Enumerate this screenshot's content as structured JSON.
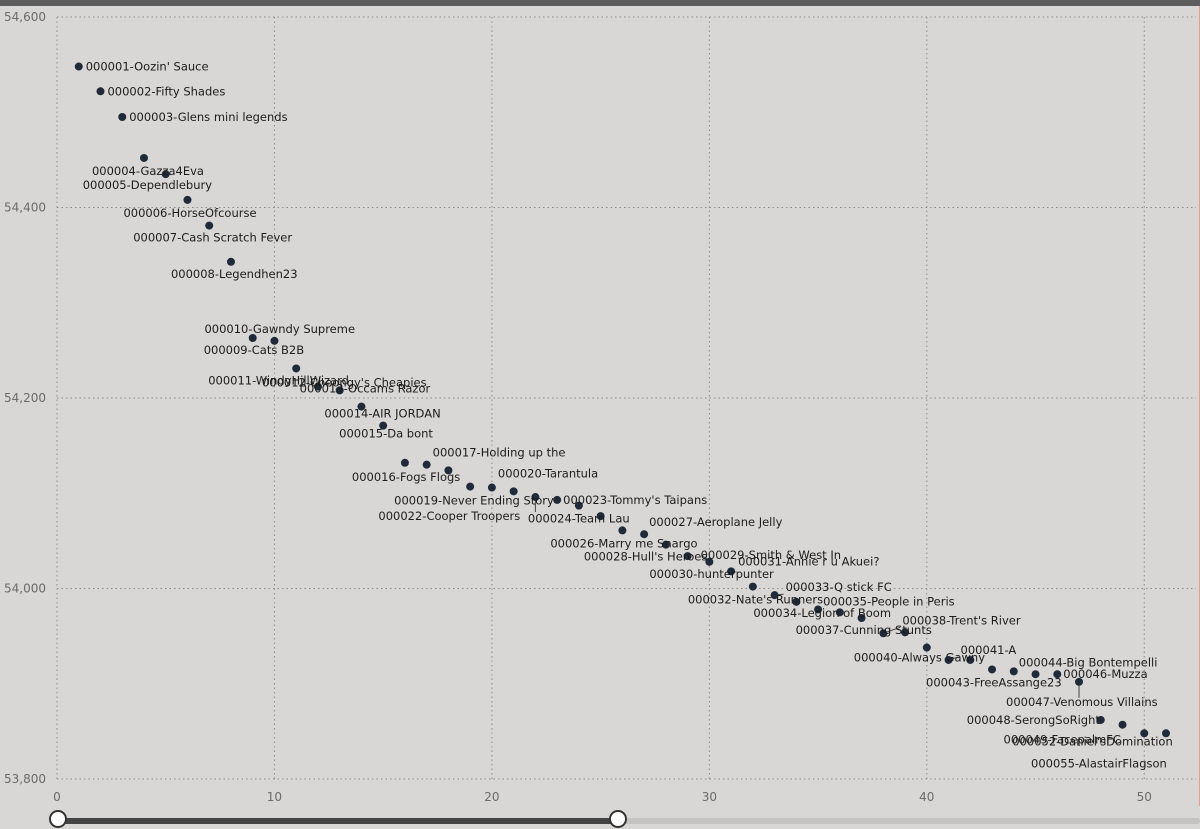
{
  "chart_data": {
    "type": "scatter",
    "title": "",
    "xlabel": "",
    "ylabel": "",
    "xlim": [
      0,
      51
    ],
    "ylim": [
      53800,
      54600
    ],
    "x_ticks": [
      0,
      10,
      20,
      30,
      40,
      50
    ],
    "y_ticks": [
      53800,
      54000,
      54200,
      54400,
      54600
    ],
    "x_tick_labels": [
      "0",
      "10",
      "20",
      "30",
      "40",
      "50"
    ],
    "y_tick_labels": [
      "53,800",
      "54,000",
      "54,200",
      "54,400",
      "54,600"
    ],
    "grid": true,
    "point_color": "#1f2a3a",
    "points": [
      {
        "x": 1,
        "y": 54548,
        "label": "000001-Oozin' Sauce"
      },
      {
        "x": 2,
        "y": 54522,
        "label": "000002-Fifty Shades"
      },
      {
        "x": 3,
        "y": 54495,
        "label": "000003-Glens mini legends"
      },
      {
        "x": 4,
        "y": 54452,
        "label": "000004-Gazza4Eva"
      },
      {
        "x": 5,
        "y": 54435,
        "label": "000005-Dependlebury"
      },
      {
        "x": 6,
        "y": 54408,
        "label": "000006-HorseOfcourse"
      },
      {
        "x": 7,
        "y": 54381,
        "label": "000007-Cash Scratch Fever"
      },
      {
        "x": 8,
        "y": 54343,
        "label": "000008-Legendhen23"
      },
      {
        "x": 9,
        "y": 54263,
        "label": "000009-Cats B2B"
      },
      {
        "x": 10,
        "y": 54260,
        "label": "000010-Gawndy Supreme"
      },
      {
        "x": 11,
        "y": 54231,
        "label": "000011-WindyHillWizard"
      },
      {
        "x": 12,
        "y": 54212,
        "label": "000012-Cheongy's Cheapies"
      },
      {
        "x": 13,
        "y": 54208,
        "label": "000013-Occams Razor"
      },
      {
        "x": 14,
        "y": 54191,
        "label": "000014-AIR JORDAN"
      },
      {
        "x": 15,
        "y": 54171,
        "label": "000015-Da bont"
      },
      {
        "x": 16,
        "y": 54132,
        "label": "000016-Fogs Flogs"
      },
      {
        "x": 17,
        "y": 54130,
        "label": "000017-Holding up the"
      },
      {
        "x": 18,
        "y": 54124,
        "label": ""
      },
      {
        "x": 19,
        "y": 54107,
        "label": "000019-Never Ending Story"
      },
      {
        "x": 20,
        "y": 54106,
        "label": "000020-Tarantula"
      },
      {
        "x": 21,
        "y": 54102,
        "label": ""
      },
      {
        "x": 22,
        "y": 54096,
        "label": "000022-Cooper Troopers"
      },
      {
        "x": 23,
        "y": 54093,
        "label": "000023-Tommy's Taipans"
      },
      {
        "x": 24,
        "y": 54087,
        "label": "000024-Team Lau"
      },
      {
        "x": 25,
        "y": 54076,
        "label": ""
      },
      {
        "x": 26,
        "y": 54061,
        "label": "000026-Marry me Snargo"
      },
      {
        "x": 27,
        "y": 54057,
        "label": "000027-Aeroplane Jelly"
      },
      {
        "x": 28,
        "y": 54046,
        "label": "000028-Hull's Heroes"
      },
      {
        "x": 29,
        "y": 54034,
        "label": "000029-Smith & West In"
      },
      {
        "x": 30,
        "y": 54028,
        "label": "000030-hunterpunter"
      },
      {
        "x": 31,
        "y": 54018,
        "label": "000031-Annie r u Akuei?"
      },
      {
        "x": 32,
        "y": 54002,
        "label": "000032-Nate's Runners"
      },
      {
        "x": 33,
        "y": 53993,
        "label": "000033-Q stick FC"
      },
      {
        "x": 34,
        "y": 53986,
        "label": "000034-Legion of Boom"
      },
      {
        "x": 35,
        "y": 53978,
        "label": "000035-People in Peris"
      },
      {
        "x": 36,
        "y": 53975,
        "label": ""
      },
      {
        "x": 37,
        "y": 53969,
        "label": "000037-Cunning Stunts"
      },
      {
        "x": 38,
        "y": 53953,
        "label": "000038-Trent's River"
      },
      {
        "x": 39,
        "y": 53954,
        "label": ""
      },
      {
        "x": 40,
        "y": 53938,
        "label": "000040-Always Gawny"
      },
      {
        "x": 41,
        "y": 53925,
        "label": "000041-A"
      },
      {
        "x": 42,
        "y": 53925,
        "label": ""
      },
      {
        "x": 43,
        "y": 53915,
        "label": "000043-FreeAssange23"
      },
      {
        "x": 44,
        "y": 53913,
        "label": "000044-Big Bontempelli"
      },
      {
        "x": 45,
        "y": 53910,
        "label": ""
      },
      {
        "x": 46,
        "y": 53910,
        "label": "000046-Muzza"
      },
      {
        "x": 47,
        "y": 53902,
        "label": "000047-Venomous Villains"
      },
      {
        "x": 48,
        "y": 53862,
        "label": "000048-SerongSoRight"
      },
      {
        "x": 49,
        "y": 53857,
        "label": "000049-FacepalmFC"
      },
      {
        "x": 50,
        "y": 53848,
        "label": "000052-Daniel'sDomination"
      },
      {
        "x": 51,
        "y": 53848,
        "label": "000055-AlastairFlagson"
      }
    ]
  },
  "zoom_slider": {
    "start": 0,
    "end": 0.49
  }
}
